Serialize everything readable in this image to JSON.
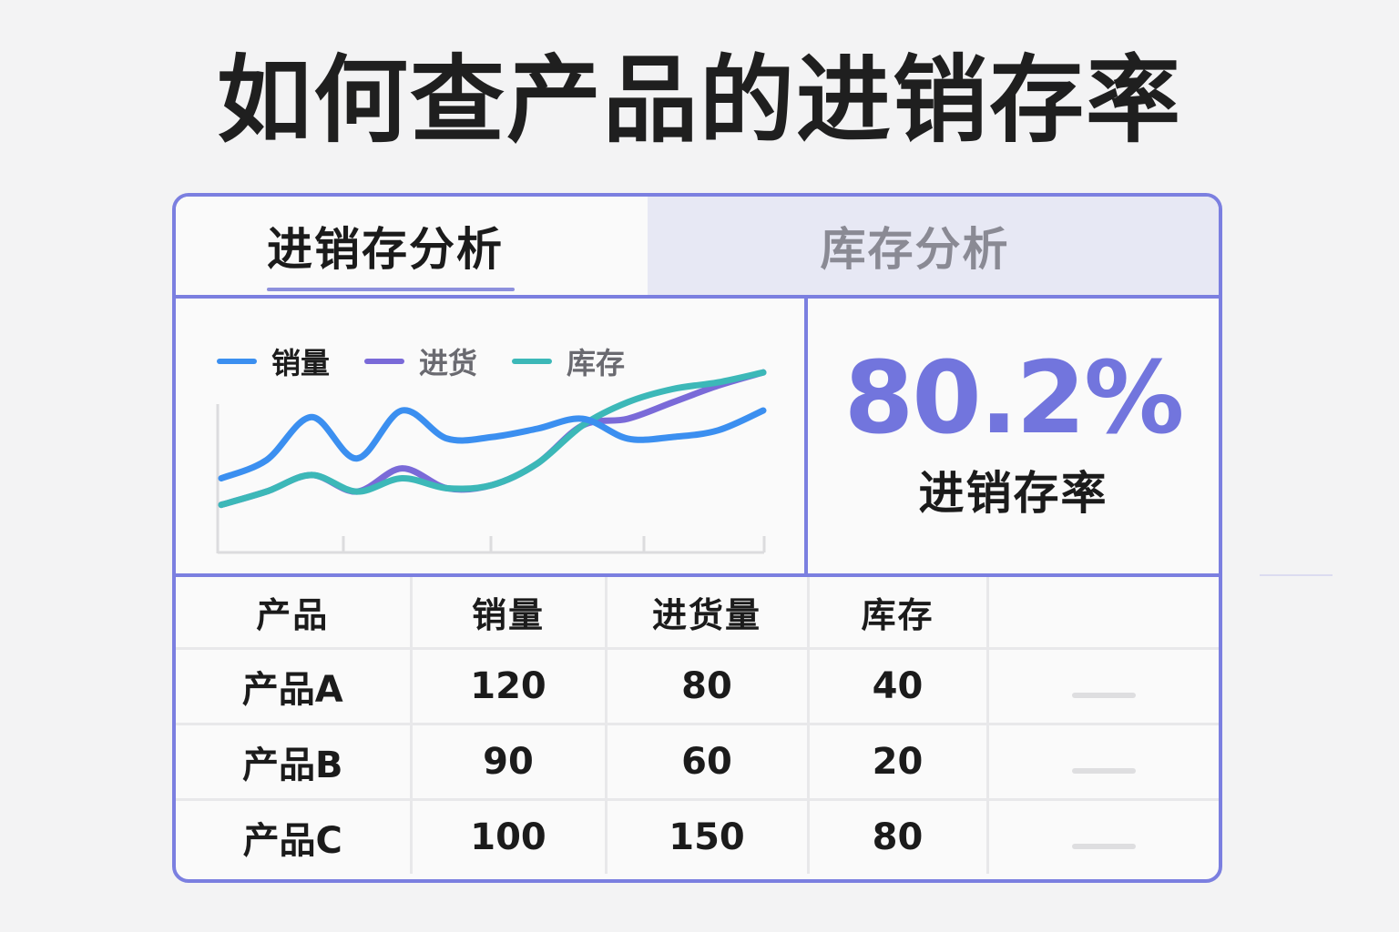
{
  "headline": "如何查产品的进销存率",
  "tabs": [
    {
      "label": "进销存分析",
      "active": true
    },
    {
      "label": "库存分析",
      "active": false
    }
  ],
  "legend": [
    {
      "label": "销量",
      "color": "#3b8ff0"
    },
    {
      "label": "进货",
      "color": "#7a6ad8"
    },
    {
      "label": "库存",
      "color": "#3cb8b8"
    }
  ],
  "chart_data": {
    "type": "line",
    "x": [
      0,
      1,
      2,
      3,
      4,
      5,
      6,
      7,
      8,
      9,
      10,
      11,
      12
    ],
    "series": [
      {
        "name": "销量",
        "color": "#3b8ff0",
        "values": [
          36,
          47,
          73,
          48,
          77,
          60,
          61,
          66,
          72,
          60,
          61,
          65,
          77
        ]
      },
      {
        "name": "进货",
        "color": "#7a6ad8",
        "values": [
          20,
          28,
          38,
          28,
          42,
          30,
          32,
          45,
          68,
          72,
          82,
          92,
          100
        ]
      },
      {
        "name": "库存",
        "color": "#3cb8b8",
        "values": [
          20,
          28,
          38,
          28,
          36,
          30,
          32,
          45,
          68,
          82,
          90,
          94,
          100
        ]
      }
    ],
    "ylim": [
      0,
      110
    ],
    "xlabel": "",
    "ylabel": ""
  },
  "kpi": {
    "value": "80.2%",
    "label": "进销存率"
  },
  "table": {
    "headers": [
      "产品",
      "销量",
      "进货量",
      "库存",
      ""
    ],
    "rows": [
      [
        "产品A",
        "120",
        "80",
        "40"
      ],
      [
        "产品B",
        "90",
        "60",
        "20"
      ],
      [
        "产品C",
        "100",
        "150",
        "80"
      ]
    ]
  }
}
